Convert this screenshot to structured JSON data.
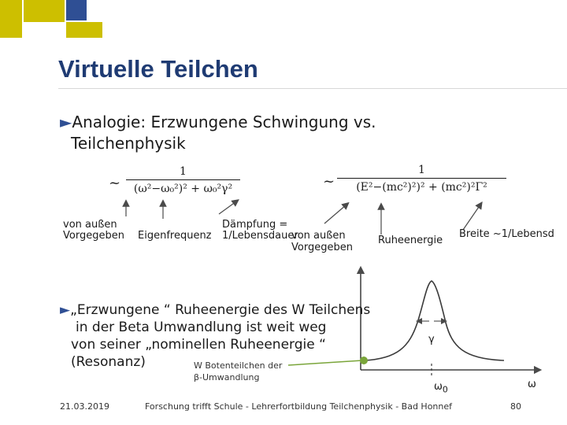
{
  "slide": {
    "title": "Virtuelle Teilchen",
    "bullet1": {
      "line1": "Analogie: Erzwungene Schwingung vs.",
      "line2": "Teilchenphysik"
    },
    "formula_left": {
      "prefix": "~",
      "numerator": "1",
      "denominator": "(ω²−ω₀²)² + ω₀²γ²"
    },
    "formula_right": {
      "prefix": "~",
      "numerator": "1",
      "denominator": "(E²−(mc²)²)² + (mc²)²Γ²"
    },
    "labels": {
      "von_aussen_1": "von außen",
      "vorgegeben_1": "Vorgegeben",
      "eigenfrequenz": "Eigenfrequenz",
      "daempfung": "Dämpfung =",
      "lebensdauer": "1/Lebensdauer",
      "von_aussen_2": "von außen",
      "vorgegeben_2": "Vorgegeben",
      "ruheenergie": "Ruheenergie",
      "breite": "Breite ~1/Lebensd"
    },
    "bullet2": {
      "line1": "„Erzwungene “ Ruheenergie des W Teilchens",
      "line2": "in der Beta Umwandlung ist weit weg",
      "line3": "von seiner „nominellen Ruheenergie “",
      "line4": "(Resonanz)"
    },
    "w_note": {
      "line1": "W Botenteilchen der",
      "line2": "β-Umwandlung"
    },
    "plot": {
      "gamma": "γ",
      "omega0": "ω",
      "omega0_sub": "0",
      "omega": "ω"
    },
    "footer": {
      "date": "21.03.2019",
      "center": "Forschung trifft Schule - Lehrerfortbildung Teilchenphysik - Bad Honnef",
      "page": "80"
    },
    "colors": {
      "title": "#1f3b73",
      "yellow": "#cdbf00",
      "blue": "#2f4f94",
      "annotation_green": "#7aa53a",
      "curve": "#3a3a3a"
    },
    "icons": [
      "triangle-bullet-icon",
      "arrow-icon"
    ]
  }
}
